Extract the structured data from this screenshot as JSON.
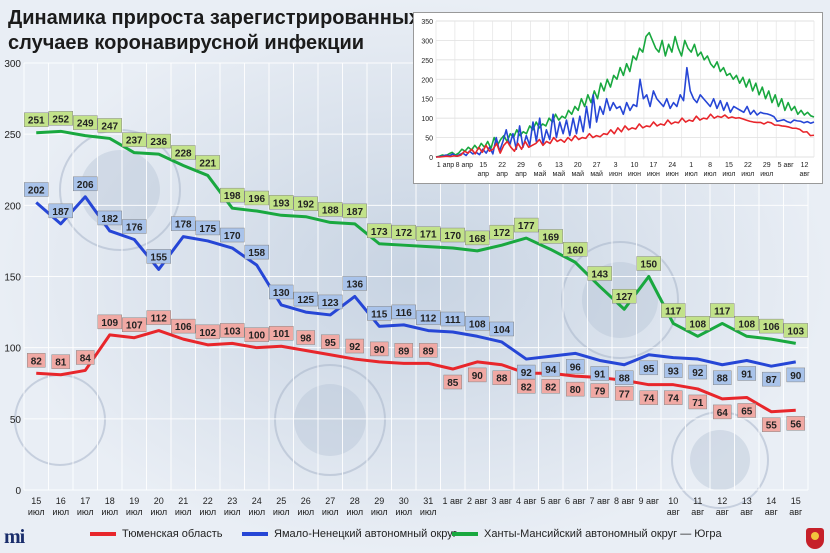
{
  "title_line1": "Динамика прироста зарегистрированных",
  "title_line2": "случаев коронавирусной инфекции",
  "legend": {
    "tyumen": "Тюменская область",
    "yamal": "Ямало-Ненецкий автономный округ",
    "khmao": "Ханты-Мансийский автономный округ — Югра"
  },
  "logo_text": "mi",
  "colors": {
    "tyumen": "#e8262b",
    "yamal": "#2646d6",
    "khmao": "#19a83f"
  },
  "chart_data": [
    {
      "type": "line",
      "title": "Динамика прироста зарегистрированных случаев коронавирусной инфекции",
      "ylim": [
        0,
        300
      ],
      "yticks": [
        0,
        50,
        100,
        150,
        200,
        250,
        300
      ],
      "grid": true,
      "legend_position": "bottom",
      "categories": [
        [
          "15",
          "июл"
        ],
        [
          "16",
          "июл"
        ],
        [
          "17",
          "июл"
        ],
        [
          "18",
          "июл"
        ],
        [
          "19",
          "июл"
        ],
        [
          "20",
          "июл"
        ],
        [
          "21",
          "июл"
        ],
        [
          "22",
          "июл"
        ],
        [
          "23",
          "июл"
        ],
        [
          "24",
          "июл"
        ],
        [
          "25",
          "июл"
        ],
        [
          "26",
          "июл"
        ],
        [
          "27",
          "июл"
        ],
        [
          "28",
          "июл"
        ],
        [
          "29",
          "июл"
        ],
        [
          "30",
          "июл"
        ],
        [
          "31",
          "июл"
        ],
        [
          "1 авг",
          ""
        ],
        [
          "2 авг",
          ""
        ],
        [
          "3 авг",
          ""
        ],
        [
          "4 авг",
          ""
        ],
        [
          "5 авг",
          ""
        ],
        [
          "6 авг",
          ""
        ],
        [
          "7 авг",
          ""
        ],
        [
          "8 авг",
          ""
        ],
        [
          "9 авг",
          ""
        ],
        [
          "10",
          "авг"
        ],
        [
          "11",
          "авг"
        ],
        [
          "12",
          "авг"
        ],
        [
          "13",
          "авг"
        ],
        [
          "14",
          "авг"
        ],
        [
          "15",
          "авг"
        ]
      ],
      "series": [
        {
          "name": "Ханты-Мансийский автономный округ — Югра",
          "values": [
            251,
            252,
            249,
            247,
            237,
            236,
            228,
            221,
            198,
            196,
            193,
            192,
            188,
            187,
            173,
            172,
            171,
            170,
            168,
            172,
            177,
            169,
            160,
            143,
            127,
            150,
            117,
            108,
            117,
            108,
            106,
            103
          ]
        },
        {
          "name": "Ямало-Ненецкий автономный округ",
          "values": [
            202,
            187,
            206,
            182,
            176,
            155,
            178,
            175,
            170,
            158,
            130,
            125,
            123,
            136,
            115,
            116,
            112,
            111,
            108,
            104,
            92,
            94,
            96,
            91,
            88,
            95,
            93,
            92,
            88,
            91,
            87,
            90
          ]
        },
        {
          "name": "Тюменская область",
          "values": [
            82,
            81,
            84,
            109,
            107,
            112,
            106,
            102,
            103,
            100,
            101,
            98,
            95,
            92,
            90,
            89,
            89,
            85,
            90,
            88,
            82,
            82,
            80,
            79,
            77,
            74,
            74,
            71,
            64,
            65,
            55,
            56
          ]
        }
      ]
    },
    {
      "type": "line",
      "ylim": [
        0,
        350
      ],
      "yticks": [
        0,
        50,
        100,
        150,
        200,
        250,
        300,
        350
      ],
      "grid": true,
      "x_tick_labels": [
        [
          "1 апр",
          ""
        ],
        [
          "8 апр",
          ""
        ],
        [
          "15",
          "апр"
        ],
        [
          "22",
          "апр"
        ],
        [
          "29",
          "апр"
        ],
        [
          "6",
          "май"
        ],
        [
          "13",
          "май"
        ],
        [
          "20",
          "май"
        ],
        [
          "27",
          "май"
        ],
        [
          "3",
          "июн"
        ],
        [
          "10",
          "июн"
        ],
        [
          "17",
          "июн"
        ],
        [
          "24",
          "июн"
        ],
        [
          "1",
          "июл"
        ],
        [
          "8",
          "июл"
        ],
        [
          "15",
          "июл"
        ],
        [
          "22",
          "июл"
        ],
        [
          "29",
          "июл"
        ],
        [
          "5 авг",
          ""
        ],
        [
          "12",
          "авг"
        ]
      ],
      "series": [
        {
          "name": "Ханты-Мансийский автономный округ — Югра",
          "values": [
            0,
            2,
            5,
            3,
            8,
            12,
            5,
            10,
            20,
            15,
            25,
            18,
            30,
            20,
            35,
            25,
            40,
            22,
            50,
            30,
            45,
            55,
            40,
            60,
            50,
            70,
            55,
            65,
            60,
            80,
            70,
            90,
            75,
            85,
            80,
            100,
            90,
            110,
            95,
            105,
            100,
            120,
            110,
            130,
            120,
            150,
            130,
            160,
            140,
            170,
            150,
            190,
            170,
            200,
            180,
            210,
            200,
            230,
            210,
            240,
            220,
            260,
            250,
            280,
            270,
            310,
            320,
            300,
            280,
            270,
            300,
            260,
            290,
            270,
            310,
            280,
            260,
            300,
            280,
            270,
            290,
            260,
            270,
            250,
            260,
            240,
            230,
            245,
            220,
            230,
            210,
            215,
            200,
            210,
            190,
            205,
            180,
            200,
            170,
            190,
            160,
            180,
            150,
            170,
            140,
            160,
            130,
            150,
            120,
            140,
            120,
            130,
            110,
            120,
            108,
            115,
            106,
            103
          ]
        },
        {
          "name": "Ямало-Ненецкий автономный округ",
          "values": [
            0,
            1,
            2,
            5,
            3,
            8,
            2,
            6,
            10,
            4,
            15,
            8,
            12,
            6,
            20,
            10,
            25,
            8,
            50,
            15,
            40,
            70,
            30,
            60,
            20,
            80,
            25,
            55,
            30,
            90,
            40,
            100,
            35,
            70,
            45,
            110,
            50,
            90,
            60,
            95,
            55,
            100,
            60,
            105,
            65,
            130,
            75,
            160,
            90,
            130,
            110,
            150,
            120,
            140,
            125,
            130,
            110,
            140,
            120,
            135,
            130,
            200,
            150,
            160,
            130,
            170,
            150,
            140,
            130,
            150,
            125,
            140,
            130,
            160,
            145,
            230,
            170,
            150,
            140,
            160,
            150,
            140,
            130,
            150,
            125,
            145,
            120,
            140,
            115,
            130,
            125,
            120,
            115,
            130,
            110,
            120,
            108,
            115,
            112,
            111,
            108,
            104,
            92,
            94,
            96,
            91,
            88,
            95,
            93,
            92,
            88,
            91,
            87,
            90
          ]
        },
        {
          "name": "Тюменская область",
          "values": [
            0,
            0,
            1,
            2,
            1,
            3,
            2,
            5,
            15,
            10,
            20,
            8,
            25,
            12,
            30,
            15,
            20,
            35,
            10,
            30,
            40,
            25,
            15,
            35,
            20,
            40,
            25,
            30,
            35,
            45,
            30,
            40,
            35,
            50,
            40,
            45,
            38,
            50,
            42,
            55,
            45,
            50,
            48,
            60,
            50,
            55,
            52,
            60,
            58,
            70,
            60,
            75,
            65,
            80,
            70,
            75,
            72,
            85,
            75,
            80,
            78,
            90,
            80,
            85,
            82,
            95,
            85,
            90,
            88,
            100,
            90,
            95,
            92,
            105,
            95,
            100,
            98,
            110,
            100,
            105,
            102,
            108,
            100,
            103,
            100,
            101,
            98,
            95,
            92,
            90,
            89,
            89,
            85,
            90,
            88,
            82,
            82,
            80,
            79,
            77,
            74,
            74,
            71,
            64,
            65,
            55,
            56
          ]
        }
      ]
    }
  ]
}
